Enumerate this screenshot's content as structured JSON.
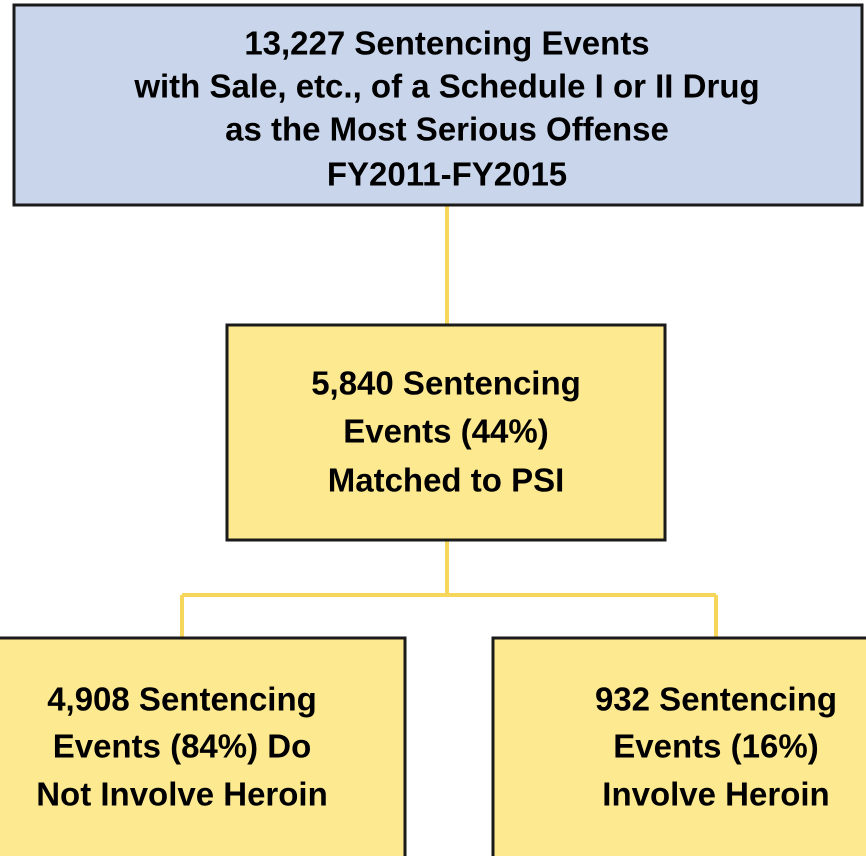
{
  "nodes": [
    {
      "lines": [
        "13,227 Sentencing Events",
        "with Sale, etc., of a Schedule I or II Drug",
        "as the Most Serious Offense",
        "FY2011-FY2015"
      ]
    },
    {
      "lines": [
        "5,840 Sentencing",
        "Events (44%)",
        "Matched to PSI"
      ]
    },
    {
      "lines": [
        "4,908 Sentencing",
        "Events (84%) Do",
        "Not Involve Heroin"
      ]
    },
    {
      "lines": [
        "932 Sentencing",
        "Events (16%)",
        "Involve Heroin"
      ]
    }
  ]
}
